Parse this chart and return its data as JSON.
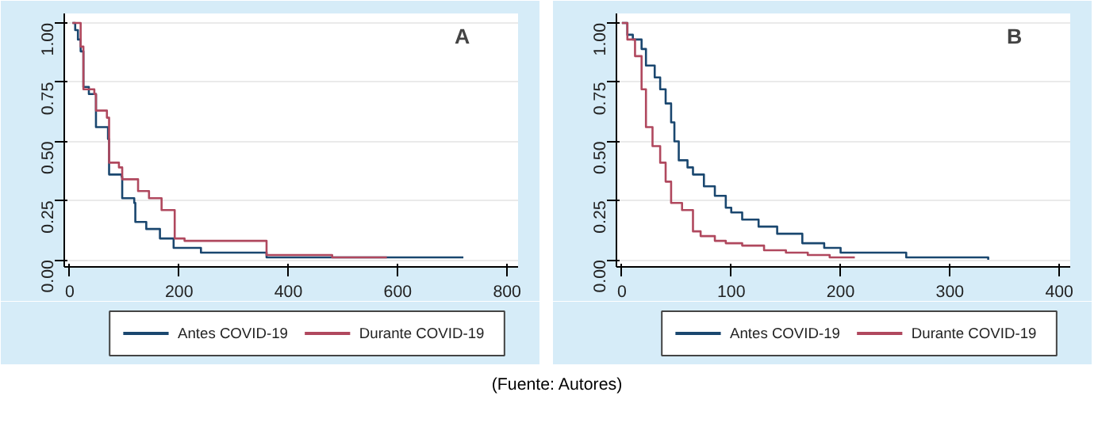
{
  "chart_data": [
    {
      "type": "step",
      "annotations": [
        "A"
      ],
      "xlim": [
        -10,
        820
      ],
      "xticks": [
        0,
        200,
        400,
        600,
        800
      ],
      "ylim": [
        -0.03,
        1.04
      ],
      "yticks": [
        {
          "value": 0,
          "label": "0.00"
        },
        {
          "value": 0.25,
          "label": "0.25"
        },
        {
          "value": 0.5,
          "label": "0.50"
        },
        {
          "value": 0.75,
          "label": "0.75"
        },
        {
          "value": 1,
          "label": "1.00"
        }
      ],
      "grid": "y",
      "legend": "bottom",
      "series": [
        {
          "name": "Antes COVID-19",
          "color": "#1a476f",
          "x": [
            5,
            10,
            15,
            20,
            25,
            35,
            48,
            70,
            72,
            95,
            96,
            118,
            120,
            140,
            165,
            190,
            240,
            360,
            720
          ],
          "values": [
            1,
            0.97,
            0.93,
            0.88,
            0.73,
            0.7,
            0.56,
            0.51,
            0.36,
            0.35,
            0.26,
            0.24,
            0.16,
            0.13,
            0.09,
            0.05,
            0.03,
            0.01,
            0.01
          ]
        },
        {
          "name": "Durante COVID-19",
          "color": "#b0485e",
          "x": [
            5,
            20,
            25,
            45,
            48,
            68,
            72,
            90,
            96,
            125,
            145,
            168,
            192,
            210,
            360,
            480,
            580
          ],
          "values": [
            1,
            0.9,
            0.72,
            0.7,
            0.63,
            0.6,
            0.41,
            0.39,
            0.34,
            0.29,
            0.26,
            0.21,
            0.09,
            0.08,
            0.02,
            0.01,
            0.01
          ]
        }
      ]
    },
    {
      "type": "step",
      "annotations": [
        "B",
        "(Fuente: Autores)"
      ],
      "xlim": [
        -5,
        410
      ],
      "xticks": [
        0,
        100,
        200,
        300,
        400
      ],
      "ylim": [
        -0.03,
        1.04
      ],
      "yticks": [
        {
          "value": 0,
          "label": "0.00"
        },
        {
          "value": 0.25,
          "label": "0.25"
        },
        {
          "value": 0.5,
          "label": "0.50"
        },
        {
          "value": 0.75,
          "label": "0.75"
        },
        {
          "value": 1,
          "label": "1.00"
        }
      ],
      "grid": "y",
      "legend": "bottom",
      "series": [
        {
          "name": "Antes COVID-19",
          "color": "#1a476f",
          "x": [
            0,
            5,
            10,
            18,
            22,
            30,
            35,
            40,
            45,
            48,
            52,
            60,
            65,
            75,
            85,
            95,
            100,
            110,
            125,
            142,
            165,
            185,
            200,
            215,
            260,
            335
          ],
          "values": [
            1,
            0.95,
            0.93,
            0.89,
            0.82,
            0.77,
            0.72,
            0.66,
            0.58,
            0.5,
            0.42,
            0.39,
            0.36,
            0.31,
            0.27,
            0.22,
            0.2,
            0.17,
            0.14,
            0.11,
            0.07,
            0.05,
            0.03,
            0.03,
            0.01,
            0.0
          ]
        },
        {
          "name": "Durante COVID-19",
          "color": "#b0485e",
          "x": [
            0,
            5,
            12,
            18,
            22,
            28,
            35,
            40,
            45,
            55,
            65,
            72,
            85,
            95,
            110,
            130,
            150,
            170,
            190,
            213
          ],
          "values": [
            1,
            0.93,
            0.86,
            0.72,
            0.56,
            0.48,
            0.41,
            0.33,
            0.24,
            0.21,
            0.12,
            0.1,
            0.08,
            0.07,
            0.06,
            0.04,
            0.03,
            0.02,
            0.01,
            0.01
          ]
        }
      ]
    }
  ]
}
